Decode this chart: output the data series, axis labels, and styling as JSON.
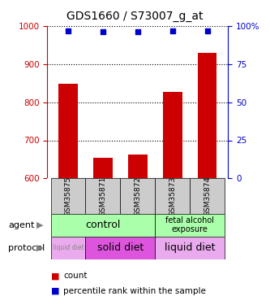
{
  "title": "GDS1660 / S73007_g_at",
  "samples": [
    "GSM35875",
    "GSM35871",
    "GSM35872",
    "GSM35873",
    "GSM35874"
  ],
  "bar_values": [
    848,
    654,
    663,
    828,
    930
  ],
  "bar_bottom": 600,
  "percentile_values": [
    97,
    96,
    96,
    97,
    97
  ],
  "bar_color": "#cc0000",
  "dot_color": "#0000cc",
  "ylim_left": [
    600,
    1000
  ],
  "ylim_right": [
    0,
    100
  ],
  "yticks_left": [
    600,
    700,
    800,
    900,
    1000
  ],
  "yticks_right": [
    0,
    25,
    50,
    75,
    100
  ],
  "ytick_labels_right": [
    "0",
    "25",
    "50",
    "75",
    "100%"
  ],
  "agent_row_label": "agent",
  "protocol_row_label": "protocol",
  "legend_count_label": "count",
  "legend_pct_label": "percentile rank within the sample",
  "background_color": "#ffffff",
  "tick_color_left": "#cc0000",
  "tick_color_right": "#0000cc",
  "control_color": "#aaffaa",
  "fetal_color": "#aaffaa",
  "liquid_color": "#eaaaee",
  "solid_color": "#dd55dd",
  "sample_box_color": "#cccccc"
}
